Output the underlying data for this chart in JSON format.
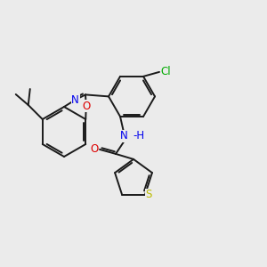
{
  "background_color": "#ebebeb",
  "bond_color": "#1a1a1a",
  "atom_colors": {
    "N": "#0000ee",
    "O": "#dd0000",
    "S": "#bbbb00",
    "Cl": "#00aa00",
    "C": "#1a1a1a",
    "H": "#0000ee"
  },
  "figsize": [
    3.0,
    3.0
  ],
  "dpi": 100,
  "lw": 1.4,
  "fontsize": 8.5
}
